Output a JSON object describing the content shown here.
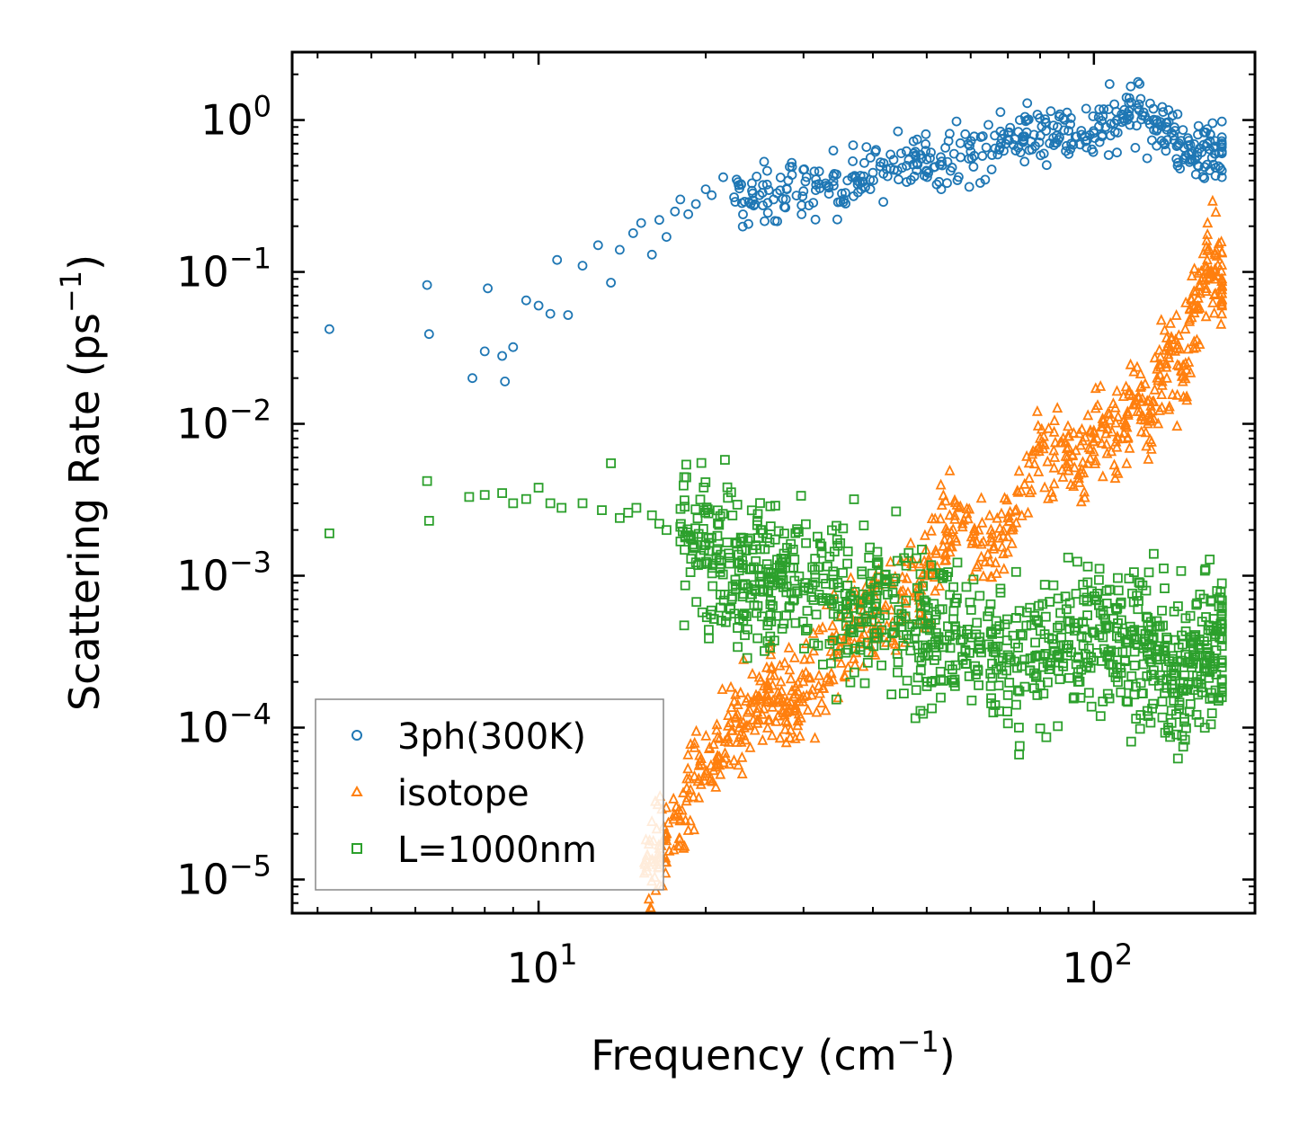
{
  "chart_data": {
    "type": "scatter",
    "xscale": "log",
    "yscale": "log",
    "xlim": [
      3.6,
      195
    ],
    "ylim": [
      6e-06,
      2.8
    ],
    "xlabel": "Frequency (cm",
    "xlabel_sup": "−1",
    "xlabel_end": ")",
    "ylabel": "Scattering Rate (ps",
    "ylabel_sup": "−1",
    "ylabel_end": ")",
    "legend_location": "lower-left",
    "x_ticks": [
      {
        "value": 10,
        "base": "10",
        "exp": "1"
      },
      {
        "value": 100,
        "base": "10",
        "exp": "2"
      }
    ],
    "y_ticks": [
      {
        "value": 1,
        "base": "10",
        "exp": "0"
      },
      {
        "value": 0.1,
        "base": "10",
        "exp": "−1"
      },
      {
        "value": 0.01,
        "base": "10",
        "exp": "−2"
      },
      {
        "value": 0.001,
        "base": "10",
        "exp": "−3"
      },
      {
        "value": 0.0001,
        "base": "10",
        "exp": "−4"
      },
      {
        "value": 1e-05,
        "base": "10",
        "exp": "−5"
      }
    ],
    "series": [
      {
        "name": "3ph(300K)",
        "marker": "circle",
        "color": "#1f77b4",
        "x": [
          4.2,
          6.3,
          6.35,
          7.6,
          8.0,
          8.1,
          8.6,
          8.7,
          9.0,
          9.5,
          10.0,
          10.5,
          10.8,
          11.3,
          12.0,
          12.8,
          13.5,
          14.0,
          14.8,
          15.3,
          16.0,
          16.5,
          17.0,
          17.6,
          18.0,
          18.6,
          19.2,
          20.0,
          20.5,
          21.5,
          22.5,
          23.5,
          25.0,
          26.5,
          28.0,
          30.0,
          32.0,
          34.0,
          36.0,
          38.0,
          40.0,
          43.0,
          46.0,
          48.0,
          50.0,
          53.0,
          56.0,
          60.0,
          64.0,
          68.0,
          72.0,
          75.0,
          78.0,
          82.0,
          86.0,
          90.0,
          95.0,
          100.0,
          105.0,
          110.0,
          115.0,
          120.0,
          125.0,
          130.0,
          135.0,
          140.0,
          145.0,
          150.0,
          155.0,
          160.0,
          165.0,
          170.0
        ],
        "y": [
          0.042,
          0.082,
          0.039,
          0.02,
          0.03,
          0.078,
          0.028,
          0.019,
          0.032,
          0.065,
          0.06,
          0.053,
          0.12,
          0.052,
          0.11,
          0.15,
          0.085,
          0.14,
          0.18,
          0.21,
          0.13,
          0.22,
          0.17,
          0.25,
          0.3,
          0.24,
          0.28,
          0.35,
          0.32,
          0.42,
          0.31,
          0.29,
          0.32,
          0.3,
          0.35,
          0.34,
          0.38,
          0.37,
          0.4,
          0.43,
          0.45,
          0.48,
          0.5,
          0.52,
          0.55,
          0.57,
          0.6,
          0.62,
          0.66,
          0.7,
          0.75,
          0.78,
          0.8,
          0.85,
          0.9,
          0.85,
          0.8,
          0.82,
          0.9,
          1.0,
          1.1,
          1.2,
          1.0,
          0.95,
          0.9,
          0.85,
          0.55,
          0.6,
          0.65,
          0.7,
          0.6,
          0.62
        ]
      },
      {
        "name": "isotope",
        "marker": "triangle",
        "color": "#ff7f0e",
        "x": [
          15.5,
          16.0,
          16.5,
          17.0,
          18.0,
          19.0,
          20.0,
          21.0,
          22.0,
          23.0,
          24.0,
          25.0,
          26.0,
          27.0,
          28.0,
          29.0,
          30.0,
          32.0,
          34.0,
          36.0,
          38.0,
          40.0,
          42.0,
          45.0,
          48.0,
          50.0,
          52.0,
          55.0,
          58.0,
          62.0,
          66.0,
          70.0,
          75.0,
          80.0,
          85.0,
          90.0,
          95.0,
          100.0,
          105.0,
          110.0,
          115.0,
          120.0,
          125.0,
          130.0,
          135.0,
          140.0,
          145.0,
          150.0,
          155.0,
          160.0,
          165.0,
          170.0
        ],
        "y": [
          1.1e-05,
          1.3e-05,
          1.6e-05,
          1.8e-05,
          2.5e-05,
          3.5e-05,
          5e-05,
          6.5e-05,
          8e-05,
          0.0001,
          0.00013,
          0.00016,
          0.00018,
          0.00017,
          0.00015,
          0.00014,
          0.00016,
          0.00022,
          0.0003,
          0.0004,
          0.0005,
          0.00055,
          0.0006,
          0.0007,
          0.0008,
          0.001,
          0.0014,
          0.0025,
          0.0022,
          0.002,
          0.0015,
          0.0018,
          0.004,
          0.008,
          0.006,
          0.007,
          0.005,
          0.009,
          0.01,
          0.007,
          0.012,
          0.015,
          0.01,
          0.02,
          0.025,
          0.03,
          0.015,
          0.05,
          0.08,
          0.12,
          0.1,
          0.08
        ]
      },
      {
        "name": "L=1000nm",
        "marker": "square",
        "color": "#2ca02c",
        "x": [
          4.2,
          6.3,
          6.35,
          7.5,
          8.0,
          8.6,
          9.0,
          9.5,
          10.0,
          10.5,
          11.0,
          12.0,
          13.0,
          13.5,
          14.0,
          14.5,
          15.0,
          16.0,
          16.5,
          17.0,
          18.0,
          19.0,
          20.0,
          21.0,
          22.0,
          23.0,
          24.0,
          25.0,
          26.0,
          27.0,
          28.0,
          30.0,
          32.0,
          34.0,
          36.0,
          38.0,
          40.0,
          42.0,
          45.0,
          48.0,
          50.0,
          52.0,
          55.0,
          58.0,
          62.0,
          66.0,
          70.0,
          75.0,
          80.0,
          85.0,
          90.0,
          95.0,
          100.0,
          105.0,
          110.0,
          115.0,
          120.0,
          125.0,
          130.0,
          135.0,
          140.0,
          145.0,
          150.0,
          155.0,
          160.0,
          165.0,
          170.0
        ],
        "y": [
          0.0019,
          0.0042,
          0.0023,
          0.0033,
          0.0034,
          0.0035,
          0.003,
          0.0032,
          0.0038,
          0.003,
          0.0028,
          0.003,
          0.0027,
          0.0055,
          0.0024,
          0.0026,
          0.0028,
          0.0025,
          0.0022,
          0.002,
          0.0021,
          0.0018,
          0.0016,
          0.0015,
          0.0014,
          0.0012,
          0.0011,
          0.001,
          0.00095,
          0.0009,
          0.00085,
          0.0008,
          0.00075,
          0.0007,
          0.00065,
          0.0006,
          0.00058,
          0.00055,
          0.0005,
          0.00048,
          0.00045,
          0.00042,
          0.0004,
          0.00038,
          0.00035,
          0.00033,
          0.0003,
          0.00028,
          0.0003,
          0.00032,
          0.00035,
          0.0004,
          0.00042,
          0.00045,
          0.0004,
          0.00038,
          0.00035,
          0.0003,
          0.00028,
          0.00025,
          0.00022,
          0.0002,
          0.00025,
          0.0003,
          0.00035,
          0.0004,
          0.00038
        ]
      }
    ]
  }
}
